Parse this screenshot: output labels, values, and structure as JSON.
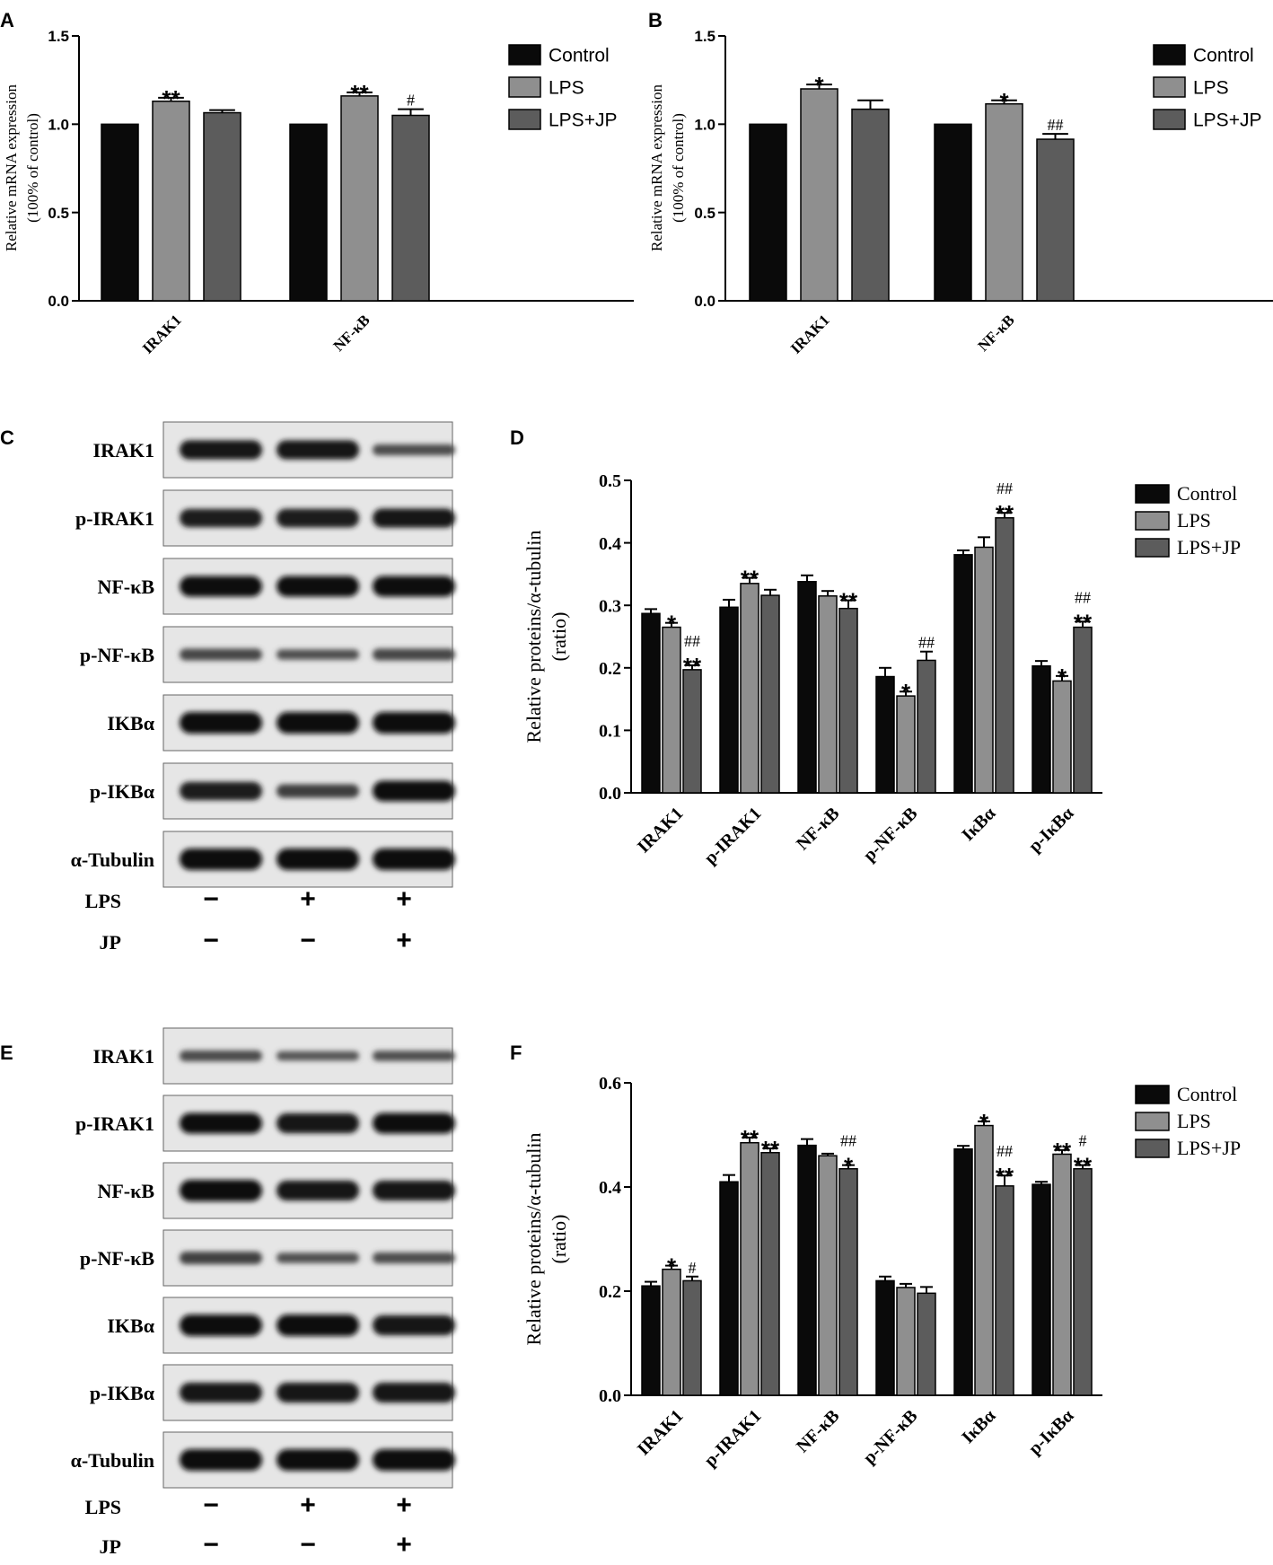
{
  "panels": {
    "A": {
      "letter": "A"
    },
    "B": {
      "letter": "B"
    },
    "C": {
      "letter": "C"
    },
    "D": {
      "letter": "D"
    },
    "E": {
      "letter": "E"
    },
    "F": {
      "letter": "F"
    }
  },
  "colors": {
    "Control": "#0a0a0a",
    "LPS": "#8f8f8f",
    "LPS+JP": "#5c5c5c"
  },
  "chart_data": [
    {
      "id": "A",
      "type": "bar",
      "categories": [
        "IRAK1",
        "NF-κB"
      ],
      "ylabel": "Relative mRNA expression",
      "ylabel2": "(100% of control)",
      "ylim": [
        0,
        1.5
      ],
      "yticks": [
        "0.0",
        "0.5",
        "1.0",
        "1.5"
      ],
      "legend": "right",
      "series": [
        {
          "name": "Control",
          "values": [
            1.0,
            1.0
          ],
          "errors": [
            0,
            0
          ],
          "sig": [
            "",
            ""
          ]
        },
        {
          "name": "LPS",
          "values": [
            1.13,
            1.16
          ],
          "errors": [
            0.02,
            0.02
          ],
          "sig": [
            "**",
            "**"
          ]
        },
        {
          "name": "LPS+JP",
          "values": [
            1.065,
            1.05
          ],
          "errors": [
            0.015,
            0.035
          ],
          "sig": [
            "",
            "#"
          ]
        }
      ]
    },
    {
      "id": "B",
      "type": "bar",
      "categories": [
        "IRAK1",
        "NF-κB"
      ],
      "ylabel": "Relative mRNA expression",
      "ylabel2": "(100% of control)",
      "ylim": [
        0,
        1.5
      ],
      "yticks": [
        "0.0",
        "0.5",
        "1.0",
        "1.5"
      ],
      "legend": "right",
      "series": [
        {
          "name": "Control",
          "values": [
            1.0,
            1.0
          ],
          "errors": [
            0,
            0
          ],
          "sig": [
            "",
            ""
          ]
        },
        {
          "name": "LPS",
          "values": [
            1.2,
            1.115
          ],
          "errors": [
            0.025,
            0.02
          ],
          "sig": [
            "*",
            "*"
          ]
        },
        {
          "name": "LPS+JP",
          "values": [
            1.085,
            0.915
          ],
          "errors": [
            0.05,
            0.03
          ],
          "sig": [
            "",
            "##"
          ]
        }
      ]
    },
    {
      "id": "D",
      "type": "bar",
      "categories": [
        "IRAK1",
        "p-IRAK1",
        "NF-κB",
        "p-NF-κB",
        "IκBα",
        "p-IκBα"
      ],
      "ylabel": "Relative proteins/α-tubulin",
      "ylabel2": "(ratio)",
      "ylim": [
        0,
        0.5
      ],
      "yticks": [
        "0.0",
        "0.1",
        "0.2",
        "0.3",
        "0.4",
        "0.5"
      ],
      "legend": "right",
      "series": [
        {
          "name": "Control",
          "values": [
            0.287,
            0.297,
            0.338,
            0.186,
            0.381,
            0.203
          ],
          "errors": [
            0.007,
            0.012,
            0.01,
            0.014,
            0.007,
            0.008
          ],
          "sig": [
            "",
            "",
            "",
            "",
            "",
            ""
          ]
        },
        {
          "name": "LPS",
          "values": [
            0.265,
            0.335,
            0.315,
            0.155,
            0.393,
            0.179
          ],
          "errors": [
            0.007,
            0.009,
            0.008,
            0.007,
            0.016,
            0.008
          ],
          "sig": [
            "*",
            "**",
            "",
            "*",
            "",
            "*"
          ]
        },
        {
          "name": "LPS+JP",
          "values": [
            0.197,
            0.316,
            0.295,
            0.212,
            0.44,
            0.265
          ],
          "errors": [
            0.007,
            0.009,
            0.013,
            0.014,
            0.008,
            0.009
          ],
          "sig": [
            "##\n**",
            "",
            "**",
            "##",
            "##\n**",
            "##\n**"
          ]
        }
      ]
    },
    {
      "id": "F",
      "type": "bar",
      "categories": [
        "IRAK1",
        "p-IRAK1",
        "NF-κB",
        "p-NF-κB",
        "IκBα",
        "p-IκBα"
      ],
      "ylabel": "Relative proteins/α-tubulin",
      "ylabel2": "(ratio)",
      "ylim": [
        0,
        0.6
      ],
      "yticks": [
        "0.0",
        "0.2",
        "0.4",
        "0.6"
      ],
      "legend": "right",
      "series": [
        {
          "name": "Control",
          "values": [
            0.21,
            0.41,
            0.48,
            0.22,
            0.473,
            0.405
          ],
          "errors": [
            0.008,
            0.013,
            0.012,
            0.008,
            0.006,
            0.005
          ],
          "sig": [
            "",
            "",
            "",
            "",
            "",
            ""
          ]
        },
        {
          "name": "LPS",
          "values": [
            0.242,
            0.485,
            0.46,
            0.207,
            0.518,
            0.463
          ],
          "errors": [
            0.007,
            0.01,
            0.004,
            0.007,
            0.008,
            0.008
          ],
          "sig": [
            "*",
            "**",
            "",
            "",
            "*",
            "**"
          ]
        },
        {
          "name": "LPS+JP",
          "values": [
            0.22,
            0.466,
            0.435,
            0.196,
            0.402,
            0.435
          ],
          "errors": [
            0.008,
            0.008,
            0.007,
            0.012,
            0.02,
            0.007
          ],
          "sig": [
            "#",
            "**",
            "##\n*",
            "",
            "##\n**",
            "#\n**"
          ]
        }
      ]
    }
  ],
  "blots": [
    {
      "id": "C",
      "labels": [
        "IRAK1",
        "p-IRAK1",
        "NF-κB",
        "p-NF-κB",
        "IKBα",
        "p-IKBα",
        "α-Tubulin"
      ],
      "intensity": [
        [
          0.85,
          0.85,
          0.35
        ],
        [
          0.8,
          0.82,
          0.85
        ],
        [
          0.95,
          0.95,
          0.95
        ],
        [
          0.4,
          0.3,
          0.4
        ],
        [
          1.0,
          1.0,
          1.0
        ],
        [
          0.8,
          0.5,
          0.95
        ],
        [
          1.0,
          1.0,
          1.0
        ]
      ],
      "conditions": [
        {
          "name": "LPS",
          "marks": [
            "−",
            "+",
            "+"
          ]
        },
        {
          "name": "JP",
          "marks": [
            "−",
            "−",
            "+"
          ]
        }
      ]
    },
    {
      "id": "E",
      "labels": [
        "IRAK1",
        "p-IRAK1",
        "NF-κB",
        "p-NF-κB",
        "IKBα",
        "p-IKBα",
        "α-Tubulin"
      ],
      "intensity": [
        [
          0.35,
          0.25,
          0.3
        ],
        [
          0.95,
          0.9,
          0.95
        ],
        [
          1.0,
          0.9,
          0.9
        ],
        [
          0.45,
          0.3,
          0.35
        ],
        [
          1.0,
          1.0,
          0.9
        ],
        [
          0.9,
          0.9,
          0.9
        ],
        [
          1.0,
          1.0,
          1.0
        ]
      ],
      "conditions": [
        {
          "name": "LPS",
          "marks": [
            "−",
            "+",
            "+"
          ]
        },
        {
          "name": "JP",
          "marks": [
            "−",
            "−",
            "+"
          ]
        }
      ]
    }
  ]
}
